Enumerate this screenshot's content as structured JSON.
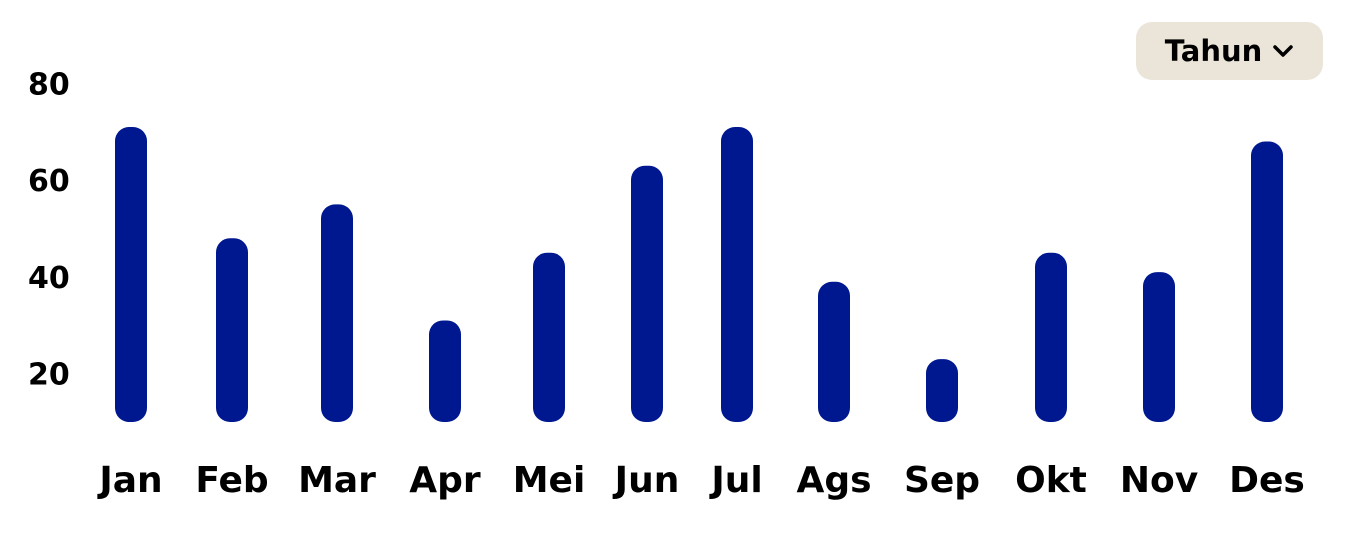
{
  "controls": {
    "period_select": {
      "value": "Tahun",
      "icon": "chevron-down-icon"
    }
  },
  "colors": {
    "bar": "#00188f",
    "select_background": "#ebe4d9",
    "text": "#000000"
  },
  "chart_data": {
    "type": "bar",
    "title": "",
    "xlabel": "",
    "ylabel": "",
    "categories": [
      "Jan",
      "Feb",
      "Mar",
      "Apr",
      "Mei",
      "Jun",
      "Jul",
      "Ags",
      "Sep",
      "Okt",
      "Nov",
      "Des"
    ],
    "values": [
      71,
      48,
      55,
      31,
      45,
      63,
      71,
      39,
      23,
      45,
      41,
      68
    ],
    "ylim": [
      10,
      80
    ],
    "yticks": [
      20,
      40,
      60,
      80
    ],
    "grid": false,
    "legend": "none"
  }
}
